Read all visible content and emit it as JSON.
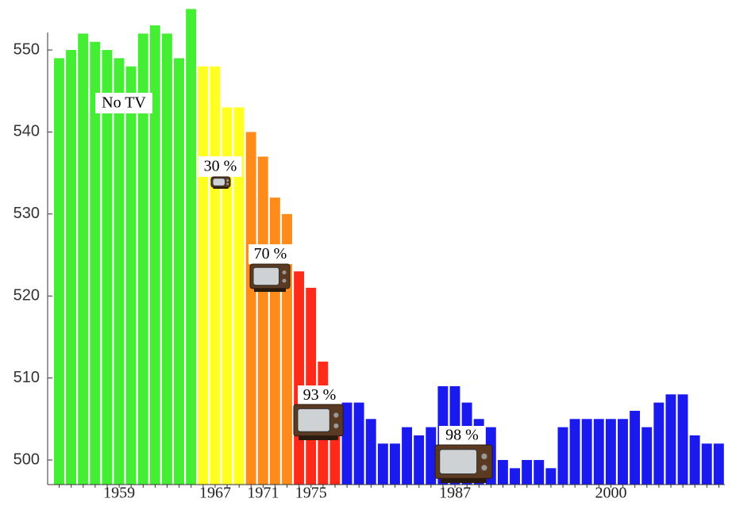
{
  "chart_data": {
    "type": "bar",
    "categories": [
      null,
      null,
      null,
      null,
      null,
      "1959",
      null,
      null,
      null,
      null,
      null,
      null,
      null,
      "1967",
      null,
      null,
      null,
      "1971",
      null,
      null,
      null,
      "1975",
      null,
      null,
      null,
      null,
      null,
      null,
      null,
      null,
      null,
      null,
      null,
      "1987",
      null,
      null,
      null,
      null,
      null,
      null,
      null,
      null,
      null,
      null,
      null,
      null,
      "2000",
      null,
      null,
      null,
      null,
      null,
      null,
      null,
      null,
      null
    ],
    "values": [
      549,
      550,
      552,
      551,
      550,
      549,
      548,
      552,
      553,
      552,
      549,
      555,
      548,
      548,
      543,
      543,
      540,
      537,
      532,
      530,
      523,
      521,
      512,
      507,
      507,
      507,
      505,
      502,
      502,
      504,
      503,
      504,
      509,
      509,
      507,
      505,
      504,
      500,
      499,
      500,
      500,
      499,
      504,
      505,
      505,
      505,
      505,
      505,
      506,
      504,
      507,
      508,
      508,
      503,
      502,
      502
    ],
    "colors": [
      "#44ee33",
      "#44ee33",
      "#44ee33",
      "#44ee33",
      "#44ee33",
      "#44ee33",
      "#44ee33",
      "#44ee33",
      "#44ee33",
      "#44ee33",
      "#44ee33",
      "#44ee33",
      "#ffff22",
      "#ffff22",
      "#ffff22",
      "#ffff22",
      "#ff8c1a",
      "#ff8c1a",
      "#ff8c1a",
      "#ff8c1a",
      "#ff2a1a",
      "#ff2a1a",
      "#ff2a1a",
      "#ff2a1a",
      "#1a1aee",
      "#1a1aee",
      "#1a1aee",
      "#1a1aee",
      "#1a1aee",
      "#1a1aee",
      "#1a1aee",
      "#1a1aee",
      "#1a1aee",
      "#1a1aee",
      "#1a1aee",
      "#1a1aee",
      "#1a1aee",
      "#1a1aee",
      "#1a1aee",
      "#1a1aee",
      "#1a1aee",
      "#1a1aee",
      "#1a1aee",
      "#1a1aee",
      "#1a1aee",
      "#1a1aee",
      "#1a1aee",
      "#1a1aee",
      "#1a1aee",
      "#1a1aee",
      "#1a1aee",
      "#1a1aee",
      "#1a1aee",
      "#1a1aee",
      "#1a1aee",
      "#1a1aee"
    ],
    "ylim": [
      497,
      556
    ],
    "yticks": [
      500,
      510,
      520,
      530,
      540,
      550
    ],
    "annotations": [
      "No TV",
      "30 %",
      "70 %",
      "93 %",
      "98 %"
    ]
  }
}
